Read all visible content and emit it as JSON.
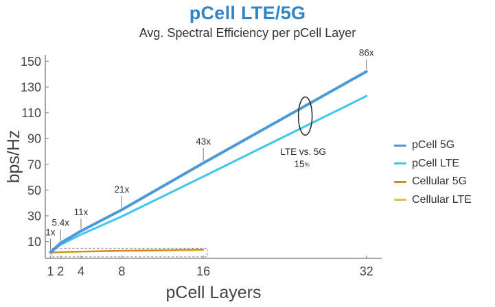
{
  "chart_data": {
    "type": "line",
    "title": "pCell LTE/5G",
    "subtitle": "Avg. Spectral Efficiency per pCell Layer",
    "xlabel": "pCell Layers",
    "ylabel": "bps/Hz",
    "x_ticks": [
      "1",
      "2",
      "4",
      "8",
      "16",
      "32"
    ],
    "y_ticks": [
      "10",
      "30",
      "50",
      "70",
      "90",
      "110",
      "130",
      "150"
    ],
    "xlim": [
      0.5,
      33.5
    ],
    "ylim": [
      -3,
      155
    ],
    "grid": false,
    "legend_position": "right",
    "series": [
      {
        "name": "pCell 5G",
        "color": "#4a9ad8",
        "width": 4,
        "x": [
          1,
          2,
          4,
          8,
          16,
          32
        ],
        "values": [
          1.65,
          8.9,
          18.2,
          34.7,
          71,
          142
        ]
      },
      {
        "name": "pCell LTE",
        "color": "#3ec6ec",
        "width": 3,
        "x": [
          1,
          2,
          4,
          8,
          16,
          32
        ],
        "values": [
          1.4,
          7.6,
          15.5,
          29.5,
          60.5,
          123
        ]
      },
      {
        "name": "Cellular 5G",
        "color": "#d4861e",
        "width": 2,
        "x": [
          1,
          2,
          4,
          8,
          16
        ],
        "values": [
          1.65,
          1.9,
          2.3,
          3,
          3.9
        ]
      },
      {
        "name": "Cellular LTE",
        "color": "#d9c24a",
        "width": 2,
        "x": [
          1,
          2,
          4,
          8,
          16
        ],
        "values": [
          1.4,
          1.6,
          2,
          2.6,
          3.3
        ]
      }
    ],
    "multipliers": [
      {
        "label": "1x",
        "x": 1,
        "y": 1.65
      },
      {
        "label": "5.4x",
        "x": 2,
        "y": 8.9
      },
      {
        "label": "11x",
        "x": 4,
        "y": 18.2
      },
      {
        "label": "21x",
        "x": 8,
        "y": 34.7
      },
      {
        "label": "43x",
        "x": 16,
        "y": 71
      },
      {
        "label": "86x",
        "x": 32,
        "y": 142
      }
    ],
    "annotation": {
      "label": "LTE vs. 5G",
      "value": "15",
      "unit": "%",
      "x": 26
    }
  },
  "colors": {
    "title": "#2f86c6",
    "axis": "#8a8a8a",
    "text": "#444444"
  }
}
